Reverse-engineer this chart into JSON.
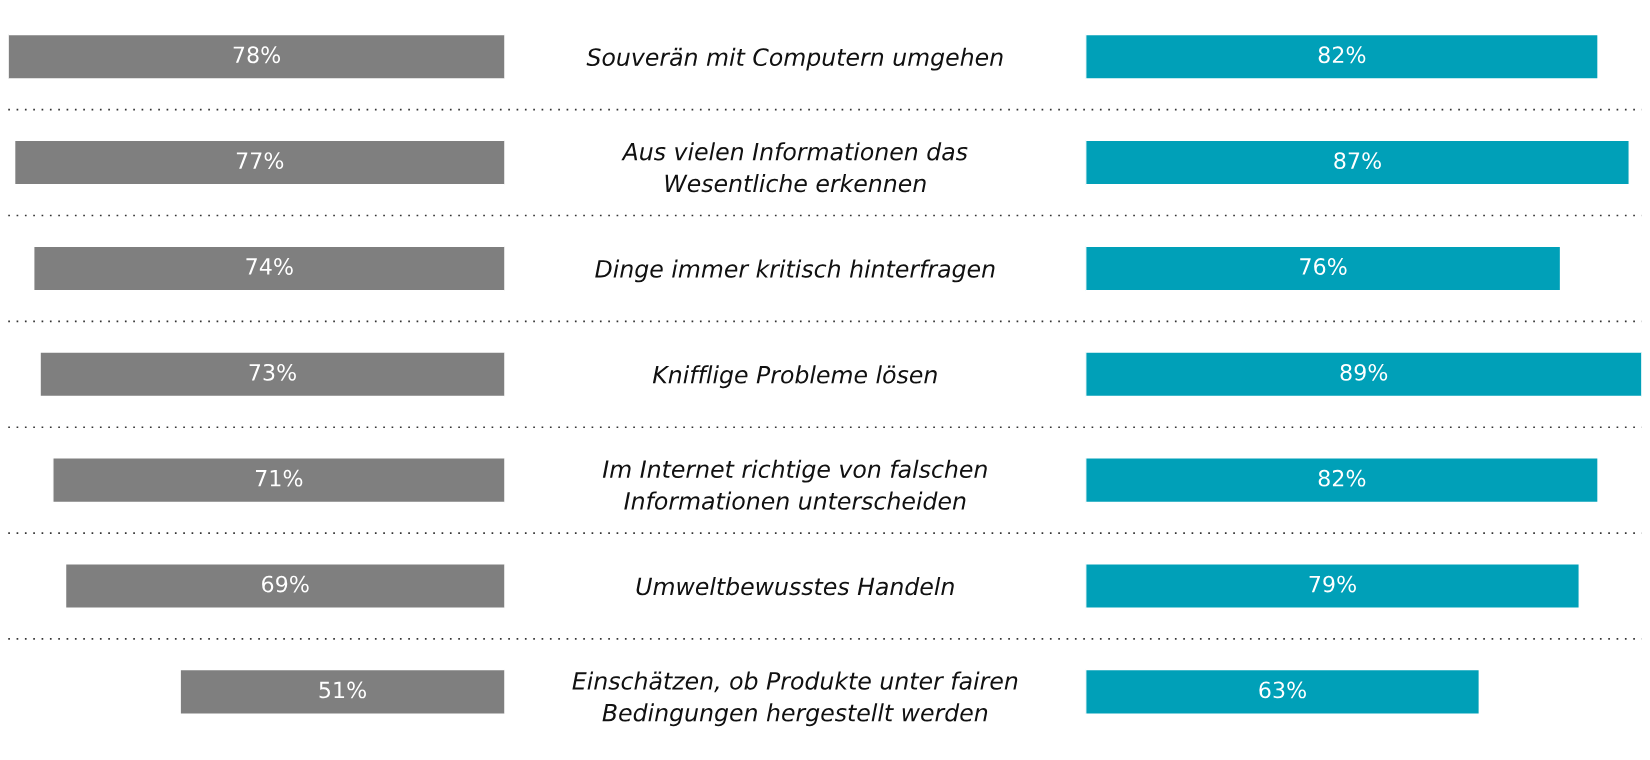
{
  "chart_data": [
    {
      "type": "bar",
      "orientation": "horizontal",
      "tick_labels": "y",
      "categories": [
        "Souverän mit Computern umgehen",
        "Aus vielen Informationen das Wesentliche erkennen",
        "Dinge immer kritisch hinterfragen",
        "Knifflige Probleme lösen",
        "Im Internet richtige von falschen Informationen unterscheiden",
        "Umweltbewusstes Handeln",
        "Einschätzen, ob Produkte unter fairen Bedingungen hergestellt werden"
      ],
      "series": [
        {
          "color": "#7f7f7f",
          "values": [
            78,
            77,
            74,
            73,
            71,
            69,
            51
          ],
          "value_labels": [
            "78%",
            "77%",
            "74%",
            "73%",
            "71%",
            "69%",
            "51%"
          ]
        }
      ]
    },
    {
      "type": "bar",
      "orientation": "horizontal",
      "categories": [
        null,
        null,
        null,
        null,
        null,
        null,
        null
      ],
      "series": [
        {
          "color": "#00a0b8",
          "values": [
            82,
            87,
            76,
            89,
            82,
            79,
            63
          ],
          "value_labels": [
            "82%",
            "87%",
            "76%",
            "89%",
            "82%",
            "79%",
            "63%"
          ]
        }
      ]
    }
  ]
}
